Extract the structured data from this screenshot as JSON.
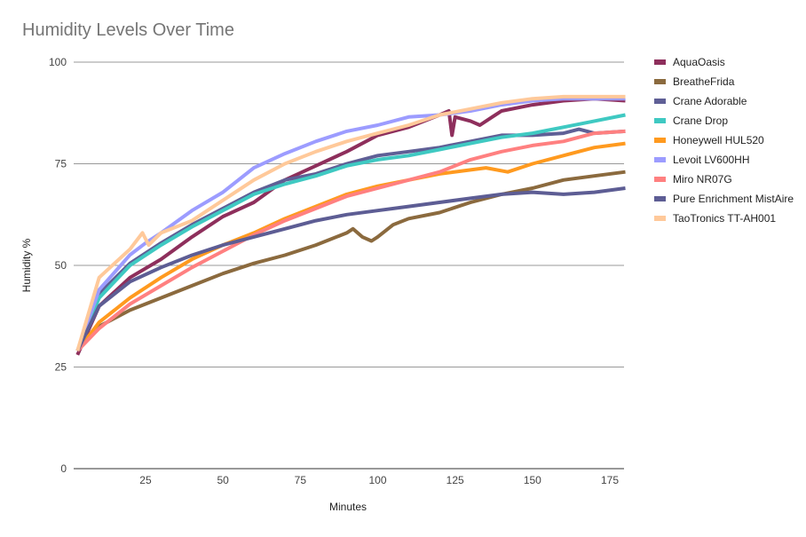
{
  "chart_data": {
    "type": "line",
    "title": "Humidity Levels Over Time",
    "xlabel": "Minutes",
    "ylabel": "Humidity %",
    "xlim": [
      0,
      180
    ],
    "ylim": [
      0,
      100
    ],
    "xticks": [
      25,
      50,
      75,
      100,
      125,
      150,
      175
    ],
    "yticks": [
      0,
      25,
      50,
      75,
      100
    ],
    "grid": true,
    "legend": "right",
    "series": [
      {
        "name": "AquaOasis",
        "color": "#8e2f5c",
        "points": [
          [
            3,
            28
          ],
          [
            10,
            40
          ],
          [
            20,
            47
          ],
          [
            30,
            51.5
          ],
          [
            40,
            57
          ],
          [
            50,
            62
          ],
          [
            60,
            65.5
          ],
          [
            70,
            71
          ],
          [
            80,
            74.5
          ],
          [
            90,
            78
          ],
          [
            100,
            82
          ],
          [
            110,
            84
          ],
          [
            120,
            87
          ],
          [
            123,
            88
          ],
          [
            124,
            82
          ],
          [
            125,
            86.5
          ],
          [
            130,
            85.5
          ],
          [
            133,
            84.5
          ],
          [
            137,
            86.5
          ],
          [
            140,
            88
          ],
          [
            150,
            89.5
          ],
          [
            160,
            90.5
          ],
          [
            170,
            91
          ],
          [
            180,
            90.5
          ]
        ]
      },
      {
        "name": "BreatheFrida",
        "color": "#8b6a3e",
        "points": [
          [
            3,
            29
          ],
          [
            10,
            35
          ],
          [
            20,
            39
          ],
          [
            30,
            42
          ],
          [
            40,
            45
          ],
          [
            50,
            48
          ],
          [
            60,
            50.5
          ],
          [
            70,
            52.5
          ],
          [
            80,
            55
          ],
          [
            90,
            58
          ],
          [
            92,
            59
          ],
          [
            95,
            57
          ],
          [
            98,
            56
          ],
          [
            100,
            57
          ],
          [
            105,
            60
          ],
          [
            110,
            61.5
          ],
          [
            120,
            63
          ],
          [
            130,
            65.5
          ],
          [
            140,
            67.5
          ],
          [
            150,
            69
          ],
          [
            160,
            71
          ],
          [
            170,
            72
          ],
          [
            180,
            73
          ]
        ]
      },
      {
        "name": "Crane Adorable",
        "color": "#5f5f96",
        "points": [
          [
            3,
            29
          ],
          [
            10,
            43
          ],
          [
            20,
            50.5
          ],
          [
            30,
            55.5
          ],
          [
            40,
            60
          ],
          [
            50,
            64
          ],
          [
            60,
            68
          ],
          [
            70,
            71
          ],
          [
            80,
            72.5
          ],
          [
            90,
            75
          ],
          [
            100,
            77
          ],
          [
            110,
            78
          ],
          [
            120,
            79
          ],
          [
            130,
            80.5
          ],
          [
            140,
            82
          ],
          [
            150,
            82
          ],
          [
            160,
            82.5
          ],
          [
            165,
            83.5
          ],
          [
            170,
            82.5
          ],
          [
            180,
            83
          ]
        ]
      },
      {
        "name": "Crane Drop",
        "color": "#3fc9c2",
        "points": [
          [
            3,
            29
          ],
          [
            10,
            42
          ],
          [
            20,
            50
          ],
          [
            30,
            55
          ],
          [
            40,
            59.5
          ],
          [
            50,
            63.5
          ],
          [
            60,
            67.5
          ],
          [
            70,
            70
          ],
          [
            80,
            72
          ],
          [
            90,
            74.5
          ],
          [
            100,
            76
          ],
          [
            110,
            77
          ],
          [
            120,
            78.5
          ],
          [
            130,
            80
          ],
          [
            140,
            81.5
          ],
          [
            150,
            82.5
          ],
          [
            160,
            84
          ],
          [
            170,
            85.5
          ],
          [
            180,
            87
          ]
        ]
      },
      {
        "name": "Honeywell HUL520",
        "color": "#ff9a1f",
        "points": [
          [
            3,
            29
          ],
          [
            10,
            36
          ],
          [
            20,
            42
          ],
          [
            30,
            47
          ],
          [
            40,
            51.5
          ],
          [
            50,
            55
          ],
          [
            60,
            58
          ],
          [
            70,
            61.5
          ],
          [
            80,
            64.5
          ],
          [
            90,
            67.5
          ],
          [
            100,
            69.5
          ],
          [
            110,
            71
          ],
          [
            120,
            72.5
          ],
          [
            130,
            73.5
          ],
          [
            135,
            74
          ],
          [
            142,
            73
          ],
          [
            150,
            75
          ],
          [
            160,
            77
          ],
          [
            170,
            79
          ],
          [
            180,
            80
          ]
        ]
      },
      {
        "name": "Levoit LV600HH",
        "color": "#9c9cff",
        "points": [
          [
            3,
            29
          ],
          [
            10,
            44
          ],
          [
            20,
            52.6
          ],
          [
            25,
            55.5
          ],
          [
            30,
            58
          ],
          [
            40,
            63.5
          ],
          [
            50,
            68
          ],
          [
            60,
            74
          ],
          [
            70,
            77.5
          ],
          [
            80,
            80.5
          ],
          [
            90,
            83
          ],
          [
            100,
            84.5
          ],
          [
            110,
            86.5
          ],
          [
            120,
            87
          ],
          [
            130,
            88
          ],
          [
            140,
            89.5
          ],
          [
            150,
            90.5
          ],
          [
            160,
            91
          ],
          [
            170,
            91
          ],
          [
            180,
            91
          ]
        ]
      },
      {
        "name": "Miro NR07G",
        "color": "#ff8080",
        "points": [
          [
            3,
            29
          ],
          [
            10,
            34.5
          ],
          [
            20,
            40.5
          ],
          [
            30,
            45
          ],
          [
            40,
            49.5
          ],
          [
            50,
            53.5
          ],
          [
            60,
            57.5
          ],
          [
            70,
            61
          ],
          [
            80,
            64
          ],
          [
            90,
            67
          ],
          [
            100,
            69
          ],
          [
            110,
            71
          ],
          [
            120,
            73
          ],
          [
            130,
            76
          ],
          [
            140,
            78
          ],
          [
            150,
            79.5
          ],
          [
            160,
            80.5
          ],
          [
            170,
            82.5
          ],
          [
            180,
            83
          ]
        ]
      },
      {
        "name": "Pure Enrichment MistAire",
        "color": "#5d5d94",
        "points": [
          [
            3,
            29
          ],
          [
            10,
            40
          ],
          [
            20,
            46
          ],
          [
            30,
            49.5
          ],
          [
            40,
            52.5
          ],
          [
            50,
            55
          ],
          [
            60,
            57
          ],
          [
            70,
            59
          ],
          [
            80,
            61
          ],
          [
            90,
            62.5
          ],
          [
            100,
            63.5
          ],
          [
            110,
            64.5
          ],
          [
            120,
            65.5
          ],
          [
            130,
            66.5
          ],
          [
            140,
            67.5
          ],
          [
            150,
            68
          ],
          [
            160,
            67.5
          ],
          [
            170,
            68
          ],
          [
            180,
            69
          ]
        ]
      },
      {
        "name": "TaoTronics TT-AH001",
        "color": "#ffc99a",
        "points": [
          [
            3,
            29
          ],
          [
            10,
            47
          ],
          [
            20,
            54
          ],
          [
            24,
            58
          ],
          [
            26,
            55
          ],
          [
            30,
            58
          ],
          [
            40,
            61
          ],
          [
            50,
            66
          ],
          [
            60,
            71
          ],
          [
            70,
            75
          ],
          [
            80,
            78
          ],
          [
            90,
            80.5
          ],
          [
            100,
            82.5
          ],
          [
            110,
            84.5
          ],
          [
            120,
            87
          ],
          [
            130,
            88.5
          ],
          [
            140,
            90
          ],
          [
            150,
            91
          ],
          [
            160,
            91.5
          ],
          [
            170,
            91.5
          ],
          [
            180,
            91.5
          ]
        ]
      }
    ]
  }
}
